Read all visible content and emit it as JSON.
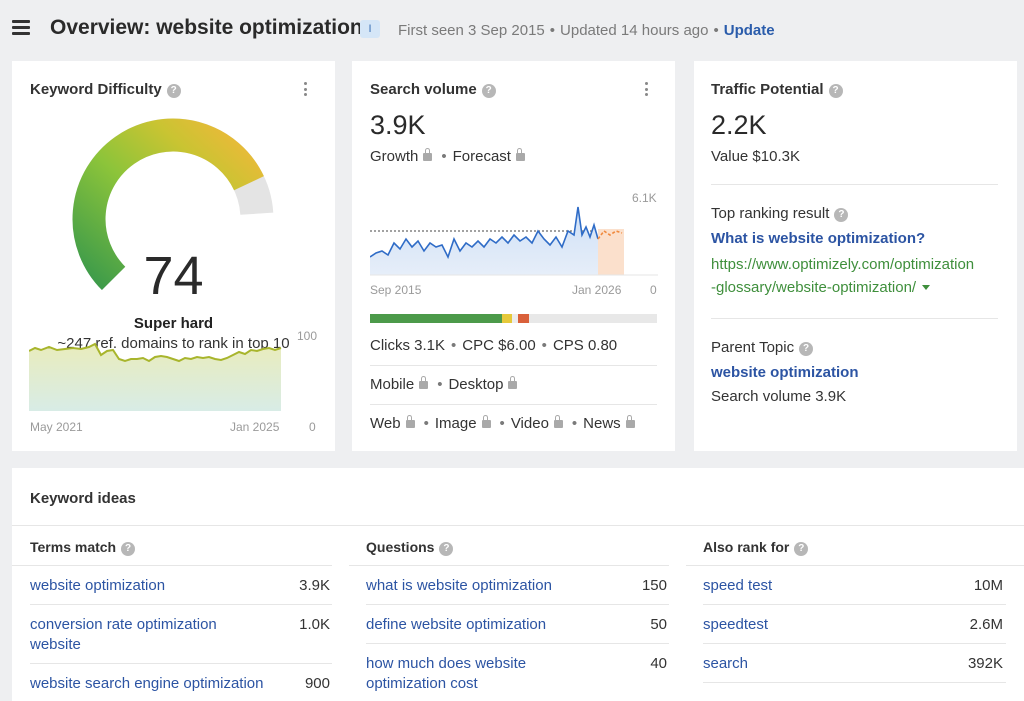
{
  "header": {
    "title": "Overview: website optimization",
    "badge": "I",
    "first_seen": "First seen 3 Sep 2015",
    "updated": "Updated 14 hours ago",
    "update_link": "Update",
    "dot": "•"
  },
  "kd": {
    "title": "Keyword Difficulty",
    "value": "74",
    "label": "Super hard",
    "subtitle": "~247 ref. domains to rank in top 10",
    "chart_max": "100",
    "chart_min": "0",
    "x_start": "May 2021",
    "x_end": "Jan 2025",
    "gauge_level": 0.74
  },
  "sv": {
    "title": "Search volume",
    "value": "3.9K",
    "growth": "Growth",
    "forecast": "Forecast",
    "chart_max": "6.1K",
    "chart_min": "0",
    "x_start": "Sep 2015",
    "x_end": "Jan 2026",
    "clicks": "Clicks 3.1K",
    "cpc": "CPC $6.00",
    "cps": "CPS 0.80",
    "mobile": "Mobile",
    "desktop": "Desktop",
    "web": "Web",
    "image": "Image",
    "video": "Video",
    "news": "News",
    "dot": "•"
  },
  "tp": {
    "title": "Traffic Potential",
    "value": "2.2K",
    "value_text": "Value $10.3K",
    "top_result_label": "Top ranking result",
    "top_result_title": "What is website optimization?",
    "top_result_url_1": "https://www.optimizely.com/optimization",
    "top_result_url_2": "-glossary/website-optimization/",
    "parent_topic_label": "Parent Topic",
    "parent_topic": "website optimization",
    "parent_volume": "Search volume 3.9K"
  },
  "ideas": {
    "title": "Keyword ideas",
    "columns": [
      {
        "title": "Terms match",
        "rows": [
          {
            "kw": "website optimization",
            "vol": "3.9K"
          },
          {
            "kw": "conversion rate optimization website",
            "vol": "1.0K"
          },
          {
            "kw": "website search engine optimization",
            "vol": "900"
          }
        ]
      },
      {
        "title": "Questions",
        "rows": [
          {
            "kw": "what is website optimization",
            "vol": "150"
          },
          {
            "kw": "define website optimization",
            "vol": "50"
          },
          {
            "kw": "how much does website optimization cost",
            "vol": "40"
          }
        ]
      },
      {
        "title": "Also rank for",
        "rows": [
          {
            "kw": "speed test",
            "vol": "10M"
          },
          {
            "kw": "speedtest",
            "vol": "2.6M"
          },
          {
            "kw": "search",
            "vol": "392K"
          }
        ]
      }
    ]
  },
  "icons": {
    "menu": "hamburger-icon",
    "help": "question-circle-icon",
    "more": "kebab-menu-icon",
    "lock": "lock-icon",
    "caret": "caret-down-icon"
  },
  "colors": {
    "link": "#2c54a3",
    "url": "#3f8f3c",
    "accent_update": "#2a5cab"
  },
  "help_glyph": "?"
}
